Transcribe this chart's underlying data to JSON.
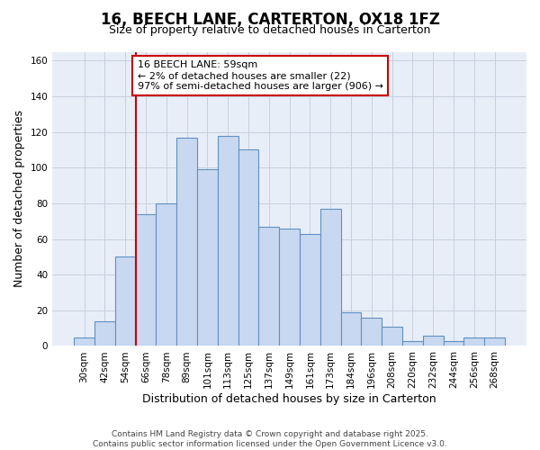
{
  "title": "16, BEECH LANE, CARTERTON, OX18 1FZ",
  "subtitle": "Size of property relative to detached houses in Carterton",
  "xlabel": "Distribution of detached houses by size in Carterton",
  "ylabel": "Number of detached properties",
  "bar_labels": [
    "30sqm",
    "42sqm",
    "54sqm",
    "66sqm",
    "78sqm",
    "89sqm",
    "101sqm",
    "113sqm",
    "125sqm",
    "137sqm",
    "149sqm",
    "161sqm",
    "173sqm",
    "184sqm",
    "196sqm",
    "208sqm",
    "220sqm",
    "232sqm",
    "244sqm",
    "256sqm",
    "268sqm"
  ],
  "bar_heights": [
    5,
    14,
    50,
    74,
    80,
    117,
    99,
    118,
    110,
    67,
    66,
    63,
    77,
    19,
    16,
    11,
    3,
    6,
    3,
    5,
    5
  ],
  "bar_color": "#c8d8f0",
  "bar_edge_color": "#6090c0",
  "vline_color": "#cc0000",
  "annotation_text": "16 BEECH LANE: 59sqm\n← 2% of detached houses are smaller (22)\n97% of semi-detached houses are larger (906) →",
  "ylim": [
    0,
    165
  ],
  "yticks": [
    0,
    20,
    40,
    60,
    80,
    100,
    120,
    140,
    160
  ],
  "bg_color": "#ffffff",
  "plot_bg_color": "#e8eef8",
  "grid_color": "#c8d0e0",
  "footer": "Contains HM Land Registry data © Crown copyright and database right 2025.\nContains public sector information licensed under the Open Government Licence v3.0."
}
